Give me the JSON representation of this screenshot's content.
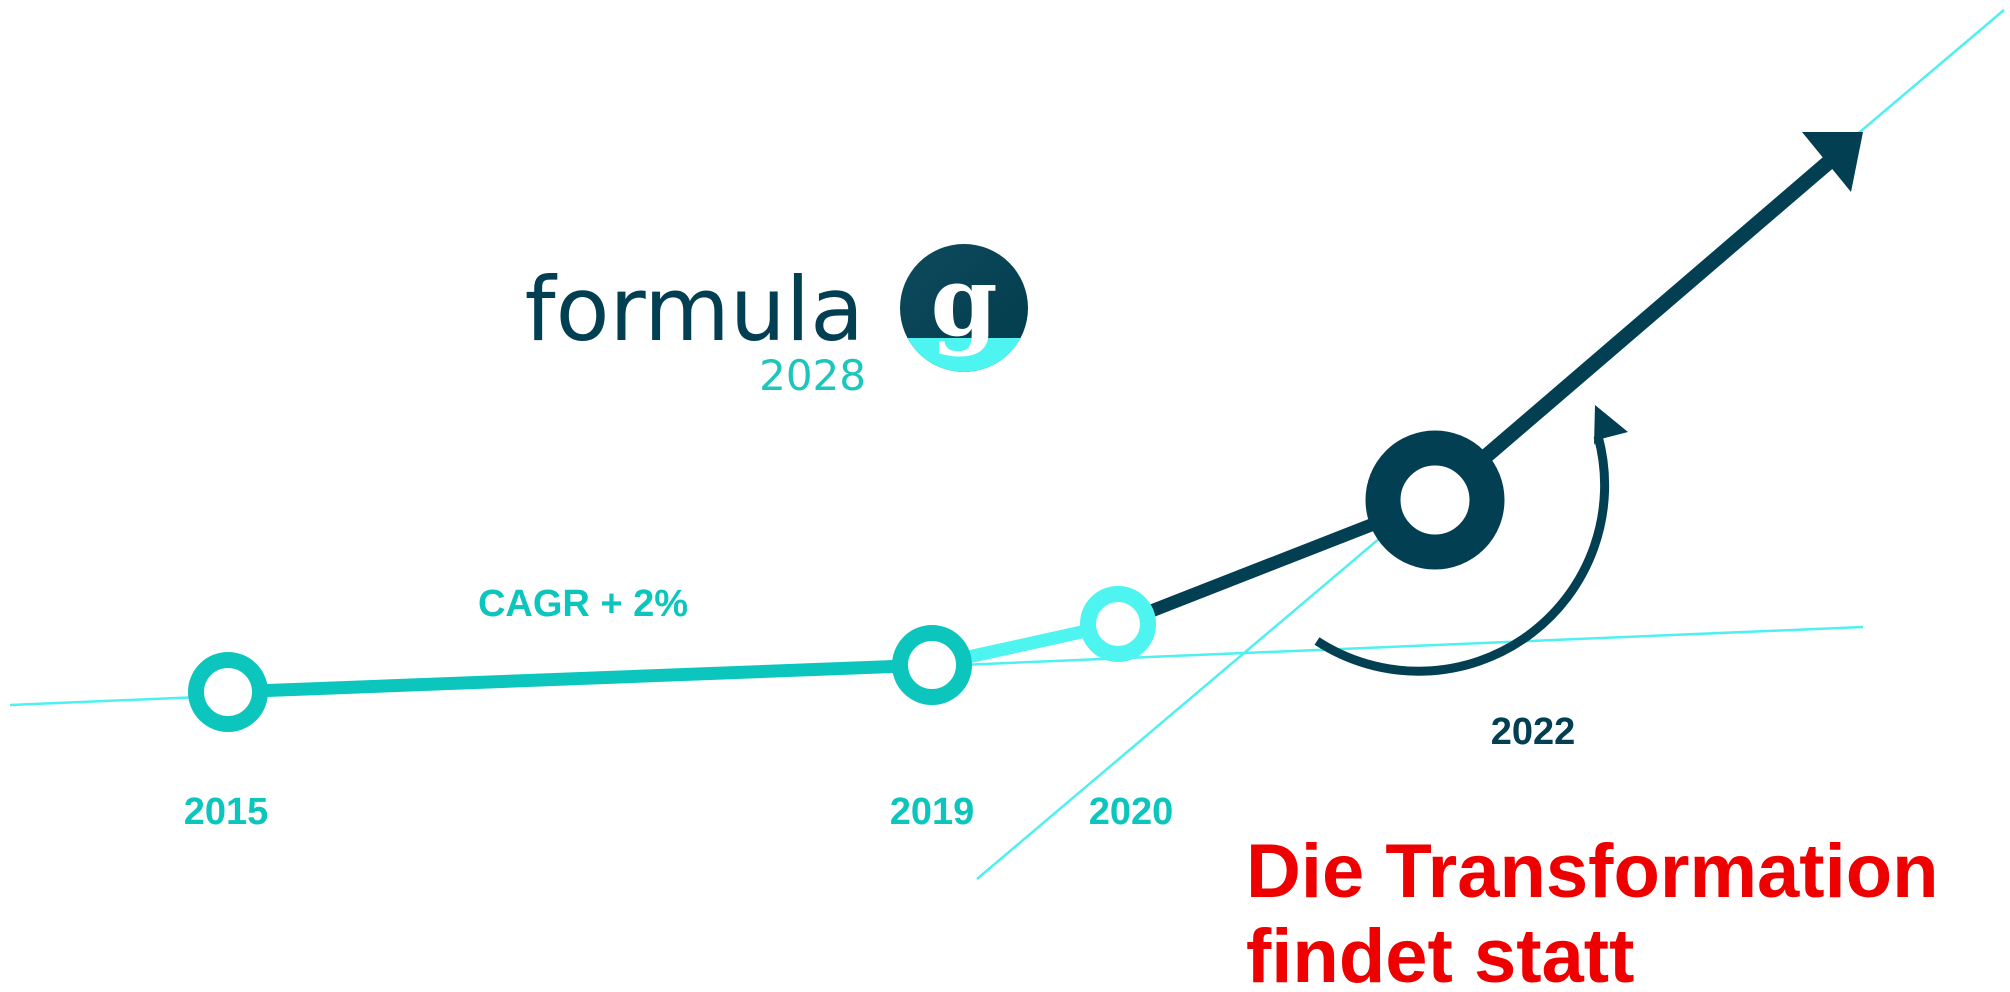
{
  "logo": {
    "name": "formula",
    "letter": "g",
    "year": "2028"
  },
  "annotation": "CAGR + 2%",
  "milestones": [
    {
      "year": "2015"
    },
    {
      "year": "2019"
    },
    {
      "year": "2020"
    },
    {
      "year": "2022"
    }
  ],
  "headline": [
    "Die Transformation",
    "findet statt"
  ]
}
